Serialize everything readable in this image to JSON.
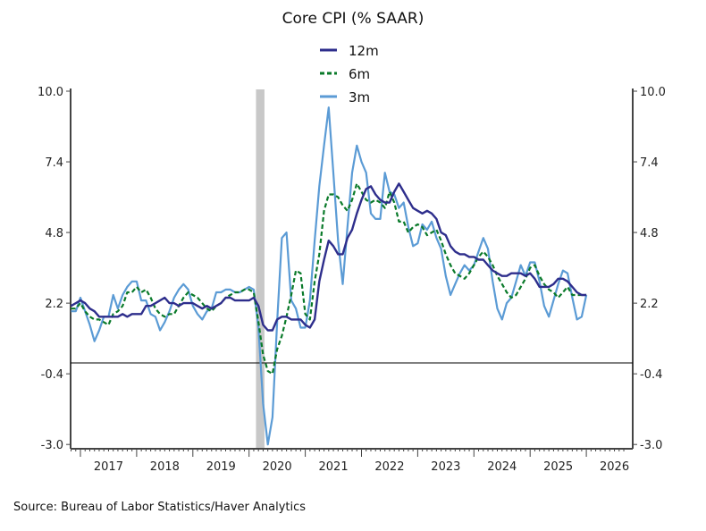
{
  "chart_data": {
    "type": "line",
    "title": "Core CPI (% SAAR)",
    "frequency": "monthly",
    "start": "2016-11",
    "end": "2026-01",
    "ylim": [
      -3.0,
      10.0
    ],
    "y_ticks": [
      "10.0",
      "7.4",
      "4.8",
      "2.2",
      "-0.4",
      "-3.0"
    ],
    "x_ticks": [
      "2017",
      "2018",
      "2019",
      "2020",
      "2021",
      "2022",
      "2023",
      "2024",
      "2025",
      "2026"
    ],
    "xlim": [
      "2016-11",
      "2026-09"
    ],
    "zero_line": true,
    "grid": false,
    "legend_position": "top-center",
    "recession": {
      "start": "2020-02",
      "end": "2020-04",
      "color": "#c8c8c8"
    },
    "series": [
      {
        "name": "12m",
        "color": "#2e2e8c",
        "style": "solid",
        "values": [
          2.1,
          2.2,
          2.3,
          2.2,
          2.0,
          1.9,
          1.7,
          1.7,
          1.7,
          1.7,
          1.7,
          1.8,
          1.7,
          1.8,
          1.8,
          1.8,
          2.1,
          2.1,
          2.2,
          2.3,
          2.4,
          2.2,
          2.2,
          2.1,
          2.2,
          2.2,
          2.2,
          2.1,
          2.0,
          2.1,
          2.0,
          2.1,
          2.2,
          2.4,
          2.4,
          2.3,
          2.3,
          2.3,
          2.3,
          2.4,
          2.1,
          1.4,
          1.2,
          1.2,
          1.6,
          1.7,
          1.7,
          1.6,
          1.6,
          1.6,
          1.4,
          1.3,
          1.6,
          3.0,
          3.8,
          4.5,
          4.3,
          4.0,
          4.0,
          4.6,
          4.9,
          5.5,
          6.0,
          6.4,
          6.5,
          6.2,
          6.0,
          5.9,
          5.9,
          6.3,
          6.6,
          6.3,
          6.0,
          5.7,
          5.6,
          5.5,
          5.6,
          5.5,
          5.3,
          4.8,
          4.7,
          4.3,
          4.1,
          4.0,
          4.0,
          3.9,
          3.9,
          3.8,
          3.8,
          3.6,
          3.4,
          3.3,
          3.2,
          3.2,
          3.3,
          3.3,
          3.3,
          3.2,
          3.3,
          3.1,
          2.8,
          2.8,
          2.8,
          2.9,
          3.1,
          3.1,
          3.0,
          2.8,
          2.6,
          2.5,
          2.5
        ]
      },
      {
        "name": "6m",
        "color": "#0a7a2a",
        "style": "dashed",
        "values": [
          2.0,
          2.0,
          2.2,
          1.9,
          1.7,
          1.6,
          1.6,
          1.5,
          1.4,
          1.8,
          1.9,
          2.1,
          2.6,
          2.6,
          2.8,
          2.6,
          2.7,
          2.4,
          2.0,
          1.8,
          1.7,
          1.8,
          1.8,
          2.1,
          2.4,
          2.6,
          2.5,
          2.4,
          2.2,
          2.0,
          1.9,
          2.1,
          2.2,
          2.4,
          2.5,
          2.6,
          2.6,
          2.7,
          2.7,
          2.6,
          1.5,
          0.3,
          -0.3,
          -0.4,
          0.5,
          1.0,
          1.7,
          2.5,
          3.4,
          3.3,
          1.8,
          1.6,
          3.0,
          4.0,
          5.6,
          6.2,
          6.2,
          6.1,
          5.8,
          5.6,
          6.0,
          6.6,
          6.3,
          6.0,
          5.9,
          6.0,
          5.9,
          5.7,
          6.3,
          5.9,
          5.2,
          5.2,
          4.8,
          5.0,
          5.1,
          5.0,
          4.7,
          4.8,
          4.9,
          4.5,
          4.0,
          3.6,
          3.3,
          3.2,
          3.1,
          3.3,
          3.6,
          3.9,
          4.1,
          3.9,
          3.6,
          3.2,
          2.9,
          2.6,
          2.4,
          2.5,
          2.8,
          3.1,
          3.5,
          3.6,
          3.2,
          2.9,
          2.7,
          2.6,
          2.4,
          2.6,
          2.8,
          2.5,
          2.5,
          2.5,
          2.5
        ]
      },
      {
        "name": "3m",
        "color": "#5b9bd5",
        "style": "solid",
        "values": [
          1.9,
          1.9,
          2.4,
          1.9,
          1.4,
          0.8,
          1.2,
          1.7,
          1.7,
          2.5,
          2.0,
          2.5,
          2.8,
          3.0,
          3.0,
          2.3,
          2.3,
          1.8,
          1.7,
          1.2,
          1.5,
          1.9,
          2.4,
          2.7,
          2.9,
          2.7,
          2.1,
          1.8,
          1.6,
          1.9,
          2.0,
          2.6,
          2.6,
          2.7,
          2.7,
          2.6,
          2.6,
          2.7,
          2.8,
          2.7,
          1.3,
          -1.5,
          -3.0,
          -2.0,
          1.5,
          4.6,
          4.8,
          2.3,
          2.0,
          1.3,
          1.3,
          2.3,
          4.5,
          6.5,
          8.0,
          9.4,
          7.0,
          4.5,
          2.9,
          5.0,
          7.0,
          8.0,
          7.4,
          7.0,
          5.5,
          5.3,
          5.3,
          7.0,
          6.3,
          6.2,
          5.7,
          5.9,
          5.0,
          4.3,
          4.4,
          5.1,
          4.9,
          5.2,
          4.6,
          4.2,
          3.2,
          2.5,
          2.9,
          3.3,
          3.6,
          3.4,
          3.6,
          4.1,
          4.6,
          4.2,
          3.0,
          2.0,
          1.6,
          2.2,
          2.4,
          3.0,
          3.6,
          3.2,
          3.7,
          3.7,
          3.0,
          2.1,
          1.7,
          2.3,
          2.9,
          3.4,
          3.3,
          2.4,
          1.6,
          1.7,
          2.5
        ]
      }
    ]
  },
  "source": "Source:  Bureau of Labor Statistics/Haver Analytics"
}
